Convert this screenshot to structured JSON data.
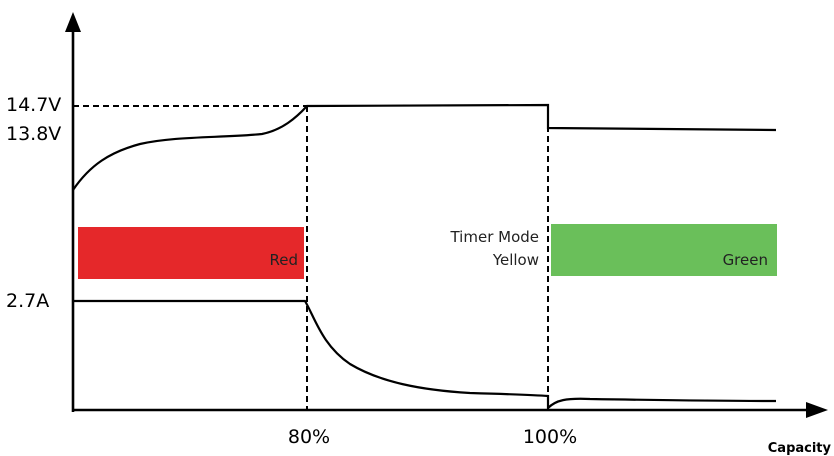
{
  "y_axis": {
    "ticks": [
      "14.7V",
      "13.8V",
      "2.7A"
    ]
  },
  "x_axis": {
    "ticks": [
      "80%",
      "100%"
    ],
    "title": "Capacity"
  },
  "indicator": {
    "red_label": "Red",
    "timer_label": "Timer Mode",
    "yellow_label": "Yellow",
    "green_label": "Green",
    "colors": {
      "red": "#e5282a",
      "green": "#6abf5a"
    }
  }
}
